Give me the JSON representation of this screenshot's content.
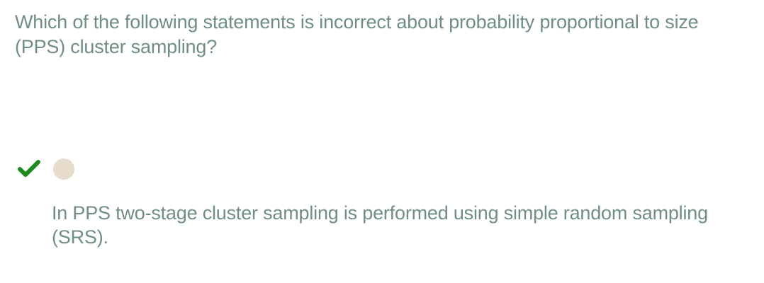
{
  "question": {
    "text": "Which of the following statements is incorrect about probability proportional to size (PPS) cluster sampling?"
  },
  "answer_option": {
    "status_icon": "checkmark-icon",
    "selected": false,
    "text": "In PPS two-stage cluster sampling is performed using simple random sampling (SRS)."
  },
  "colors": {
    "text": "#6f8f80",
    "check": "#1a8a1a",
    "radio": "#e7dccb"
  }
}
